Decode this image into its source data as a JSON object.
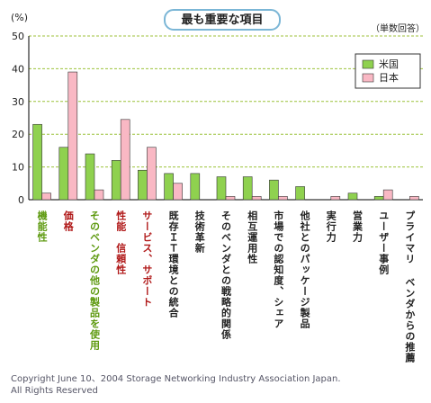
{
  "chart_data": {
    "type": "bar",
    "title": "最も重要な項目",
    "y_unit": "(%)",
    "note": "（単数回答）",
    "categories": [
      "機能性",
      "価格",
      "そのベンダの他の製品を使用",
      "性能　信頼性",
      "サービス、サポート",
      "既存ＩＴ環境との統合",
      "技術革新",
      "そのベンダとの戦略的関係",
      "相互運用性",
      "市場での認知度、シェア",
      "他社とのパッケージ製品",
      "実行力",
      "営業力",
      "ユーザー事例",
      "プライマリ ベンダからの推薦"
    ],
    "label_colors": [
      "#5e9a10",
      "#b01818",
      "#5e9a10",
      "#b01818",
      "#b01818",
      "#222222",
      "#222222",
      "#222222",
      "#222222",
      "#222222",
      "#222222",
      "#222222",
      "#222222",
      "#222222",
      "#222222"
    ],
    "series": [
      {
        "name": "米国",
        "color": "#8fd14f",
        "values": [
          23,
          16,
          14,
          12,
          9,
          8,
          8,
          7,
          7,
          6,
          4,
          0,
          2,
          1,
          0
        ]
      },
      {
        "name": "日本",
        "color": "#f9b8c4",
        "values": [
          2,
          39,
          3,
          24.5,
          16,
          5,
          0,
          1,
          1,
          1,
          0,
          1,
          0,
          3,
          1
        ]
      }
    ],
    "ylim": [
      0,
      50
    ],
    "yticks": [
      0,
      10,
      20,
      30,
      40,
      50
    ],
    "grid": true,
    "legend": "upper right",
    "footer": [
      "Copyright June 10、2004 Storage Networking Industry Association Japan.",
      "All Rights Reserved"
    ]
  }
}
